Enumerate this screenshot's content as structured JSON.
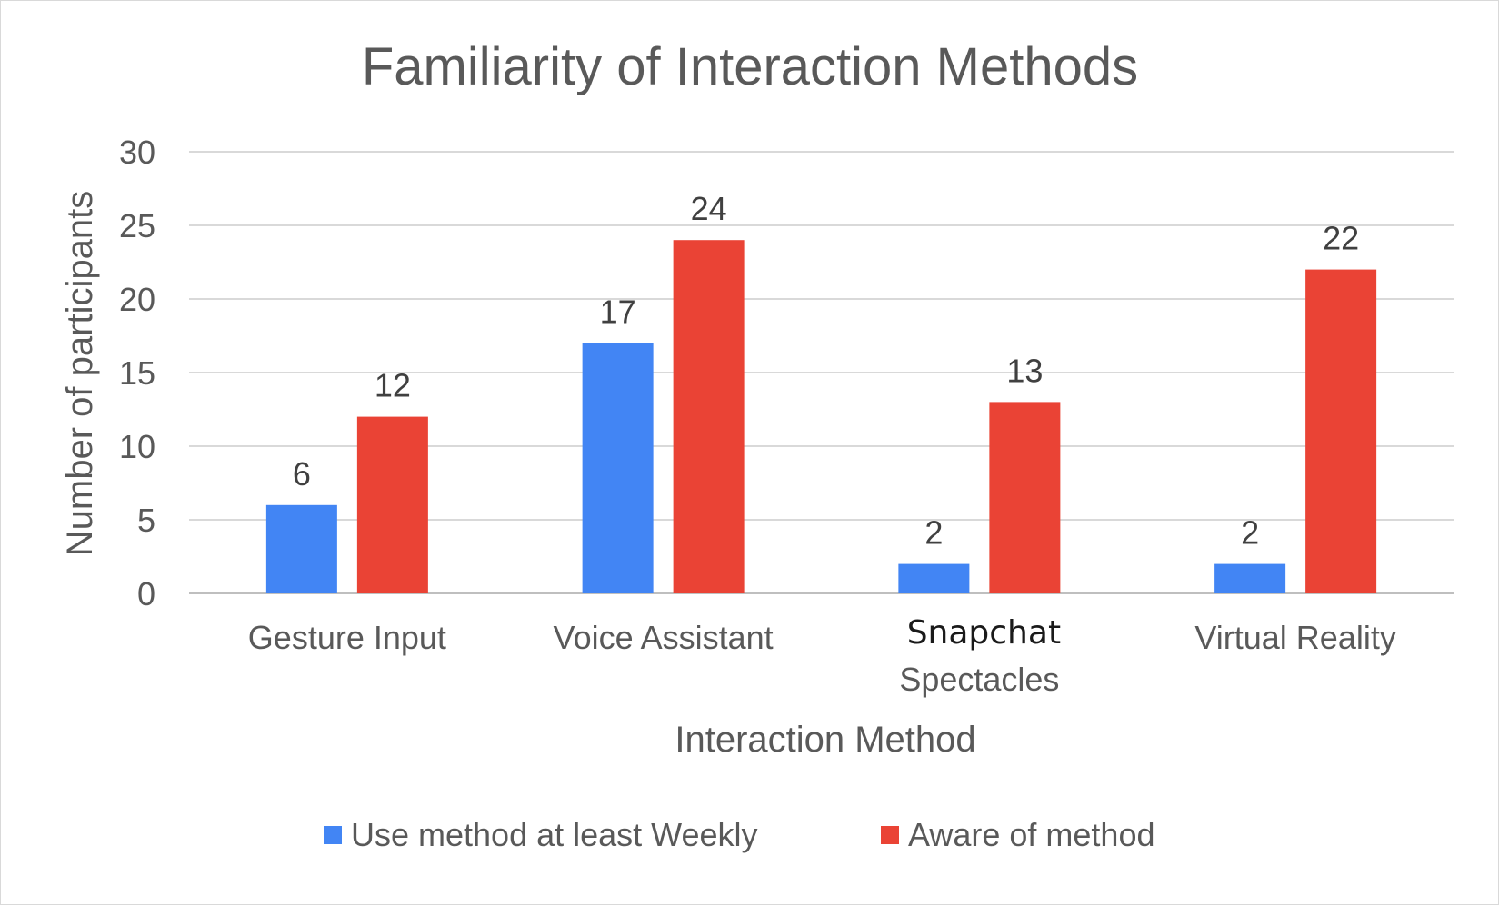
{
  "chart_data": {
    "type": "bar",
    "title": "Familiarity of Interaction Methods",
    "xlabel": "Interaction Method",
    "ylabel": "Number of participants",
    "ylim": [
      0,
      30
    ],
    "yticks": [
      "0",
      "5",
      "10",
      "15",
      "20",
      "25",
      "30"
    ],
    "grid": true,
    "legend_position": "bottom",
    "categories": [
      {
        "line1": "Gesture Input",
        "line2": ""
      },
      {
        "line1": "Voice Assistant",
        "line2": ""
      },
      {
        "line1": "Snapchat",
        "line2": "Spectacles"
      },
      {
        "line1": "Virtual Reality",
        "line2": ""
      }
    ],
    "series": [
      {
        "name": "Use method at least Weekly",
        "color": "#4285f4",
        "values": [
          6,
          17,
          2,
          2
        ]
      },
      {
        "name": "Aware of method",
        "color": "#ea4335",
        "values": [
          12,
          24,
          13,
          22
        ]
      }
    ]
  }
}
